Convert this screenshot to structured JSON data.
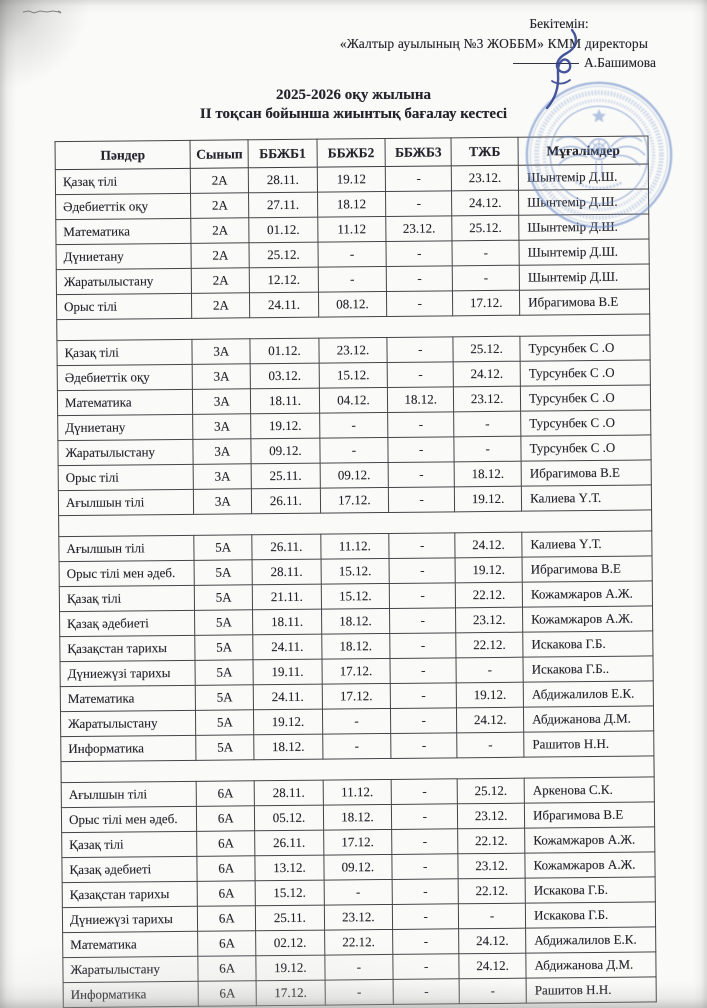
{
  "approval": {
    "approve_label": "Бекітемін:",
    "org_line": "«Жалтыр ауылының №3 ЖОББМ» КММ директоры",
    "director_name": "А.Башимова"
  },
  "title": {
    "line1": "2025-2026 оқу жылына",
    "line2": "ІІ тоқсан бойынша жиынтық бағалау кестесі"
  },
  "table": {
    "headers": [
      "Пәндер",
      "Сынып",
      "ББЖБ1",
      "ББЖБ2",
      "ББЖБ3",
      "ТЖБ",
      "Мұғалімдер"
    ],
    "blocks": [
      {
        "class": "2А",
        "rows": [
          [
            "Қазақ тілі",
            "2А",
            "28.11.",
            "19.12",
            "-",
            "23.12.",
            "Шынтемір Д.Ш."
          ],
          [
            "Әдебиеттік оқу",
            "2А",
            "27.11.",
            "18.12",
            "-",
            "24.12.",
            "Шынтемір Д.Ш."
          ],
          [
            "Математика",
            "2А",
            "01.12.",
            "11.12",
            "23.12.",
            "25.12.",
            "Шынтемір Д.Ш."
          ],
          [
            "Дүниетану",
            "2А",
            "25.12.",
            "-",
            "-",
            "-",
            "Шынтемір Д.Ш."
          ],
          [
            "Жаратылыстану",
            "2А",
            "12.12.",
            "-",
            "-",
            "-",
            "Шынтемір Д.Ш."
          ],
          [
            "Орыс тілі",
            "2А",
            "24.11.",
            "08.12.",
            "-",
            "17.12.",
            "Ибрагимова В.Е"
          ]
        ]
      },
      {
        "class": "3А",
        "rows": [
          [
            "Қазақ тілі",
            "3А",
            "01.12.",
            "23.12.",
            "-",
            "25.12.",
            "Турсунбек С .О"
          ],
          [
            "Әдебиеттік оқу",
            "3А",
            "03.12.",
            "15.12.",
            "-",
            "24.12.",
            "Турсунбек С .О"
          ],
          [
            "Математика",
            "3А",
            "18.11.",
            "04.12.",
            "18.12.",
            "23.12.",
            "Турсунбек С .О"
          ],
          [
            "Дүниетану",
            "3А",
            "19.12.",
            "-",
            "-",
            "-",
            "Турсунбек С .О"
          ],
          [
            "Жаратылыстану",
            "3А",
            "09.12.",
            "-",
            "-",
            "-",
            "Турсунбек С .О"
          ],
          [
            "Орыс тілі",
            "3А",
            "25.11.",
            "09.12.",
            "-",
            "18.12.",
            "Ибрагимова В.Е"
          ],
          [
            "Ағылшын тілі",
            "3А",
            "26.11.",
            "17.12.",
            "-",
            "19.12.",
            "Калиева Ү.Т."
          ]
        ]
      },
      {
        "class": "5А",
        "rows": [
          [
            "Ағылшын тілі",
            "5А",
            "26.11.",
            "11.12.",
            "-",
            "24.12.",
            "Калиева Ү.Т."
          ],
          [
            "Орыс тілі мен әдеб.",
            "5А",
            "28.11.",
            "15.12.",
            "-",
            "19.12.",
            "Ибрагимова В.Е"
          ],
          [
            "Қазақ тілі",
            "5А",
            "21.11.",
            "15.12.",
            "-",
            "22.12.",
            "Кожамжаров А.Ж."
          ],
          [
            "Қазақ әдебиеті",
            "5А",
            "18.11.",
            "18.12.",
            "-",
            "23.12.",
            "Кожамжаров А.Ж."
          ],
          [
            "Қазақстан тарихы",
            "5А",
            "24.11.",
            "18.12.",
            "-",
            "22.12.",
            "Искакова Г.Б."
          ],
          [
            "Дүниежүзі тарихы",
            "5А",
            "19.11.",
            "17.12.",
            "-",
            "-",
            "Искакова Г.Б.."
          ],
          [
            "Математика",
            "5А",
            "24.11.",
            "17.12.",
            "-",
            "19.12.",
            "Абдижалилов Е.К."
          ],
          [
            "Жаратылыстану",
            "5А",
            "19.12.",
            "-",
            "-",
            "24.12.",
            "Абдижанова Д.М."
          ],
          [
            "Информатика",
            "5А",
            "18.12.",
            "-",
            "-",
            "-",
            "Рашитов Н.Н."
          ]
        ]
      },
      {
        "class": "6А",
        "rows": [
          [
            "Ағылшын тілі",
            "6А",
            "28.11.",
            "11.12.",
            "-",
            "25.12.",
            "Аркенова С.К."
          ],
          [
            "Орыс тілі мен әдеб.",
            "6А",
            "05.12.",
            "18.12.",
            "-",
            "23.12.",
            "Ибрагимова В.Е"
          ],
          [
            "Қазақ тілі",
            "6А",
            "26.11.",
            "17.12.",
            "-",
            "22.12.",
            "Кожамжаров А.Ж."
          ],
          [
            "Қазақ әдебиеті",
            "6А",
            "13.12.",
            "09.12.",
            "-",
            "23.12.",
            "Кожамжаров А.Ж."
          ],
          [
            "Қазақстан тарихы",
            "6А",
            "15.12.",
            "-",
            "-",
            "22.12.",
            "Искакова Г.Б."
          ],
          [
            "Дүниежүзі тарихы",
            "6А",
            "25.11.",
            "23.12.",
            "-",
            "-",
            "Искакова Г.Б."
          ],
          [
            "Математика",
            "6А",
            "02.12.",
            "22.12.",
            "-",
            "24.12.",
            "Абдижалилов Е.К."
          ],
          [
            "Жаратылыстану",
            "6А",
            "19.12.",
            "-",
            "-",
            "24.12.",
            "Абдижанова Д.М."
          ],
          [
            "Информатика",
            "6А",
            "17.12.",
            "-",
            "-",
            "-",
            "Рашитов Н.Н."
          ]
        ]
      }
    ]
  },
  "colors": {
    "stamp_blue": "#6e8ec9",
    "ink_blue": "#2e3f8e",
    "border": "#454549",
    "text": "#23232b"
  }
}
